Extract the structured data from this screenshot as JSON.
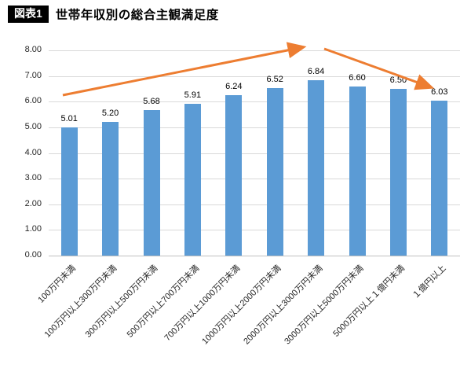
{
  "header": {
    "badge": "図表1",
    "title": "世帯年収別の総合主観満足度"
  },
  "chart_data": {
    "type": "bar",
    "title": "世帯年収別の総合主観満足度",
    "categories": [
      "100万円未満",
      "100万円以上300万円未満",
      "300万円以上500万円未満",
      "500万円以上700万円未満",
      "700万円以上1000万円未満",
      "1000万円以上2000万円未満",
      "2000万円以上3000万円未満",
      "3000万円以上5000万円未満",
      "5000万円以上１億円未満",
      "１億円以上"
    ],
    "values": [
      5.01,
      5.2,
      5.68,
      5.91,
      6.24,
      6.52,
      6.84,
      6.6,
      6.5,
      6.03
    ],
    "value_labels": [
      "5.01",
      "5.20",
      "5.68",
      "5.91",
      "6.24",
      "6.52",
      "6.84",
      "6.60",
      "6.50",
      "6.03"
    ],
    "xlabel": "",
    "ylabel": "",
    "ylim": [
      0,
      8
    ],
    "yticks": [
      "8.00",
      "7.00",
      "6.00",
      "5.00",
      "4.00",
      "3.00",
      "2.00",
      "1.00",
      "0.00"
    ],
    "grid": true,
    "legend": "none",
    "bar_color": "#5b9bd5",
    "arrow_color": "#ed7d31",
    "annotations": [
      "rising-trend-arrow to peak 6.84",
      "falling-trend-arrow to 6.03"
    ]
  }
}
